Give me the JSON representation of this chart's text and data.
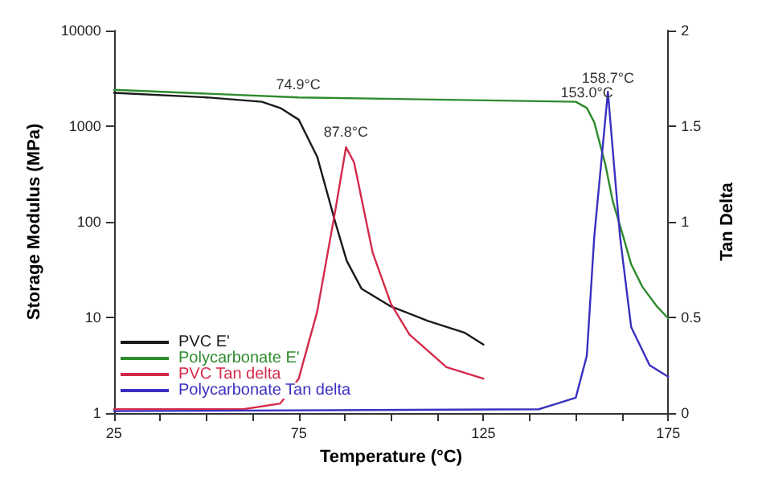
{
  "chart_data": {
    "type": "line",
    "xlabel": "Temperature (°C)",
    "ylabel": "Storage Modulus (MPa)",
    "y2label": "Tan Delta",
    "xlim": [
      25,
      175
    ],
    "xticks": [
      25,
      {
        "value": 37.5,
        "label": null
      },
      {
        "value": 50,
        "label": null
      },
      {
        "value": 62.5,
        "label": null
      },
      75,
      {
        "value": 87.5,
        "label": null
      },
      {
        "value": 100,
        "label": null
      },
      {
        "value": 112.5,
        "label": null
      },
      125,
      {
        "value": 137.5,
        "label": null
      },
      {
        "value": 150,
        "label": null
      },
      {
        "value": 162.5,
        "label": null
      },
      175
    ],
    "ylim": [
      1,
      10000
    ],
    "yticks": [
      1,
      10,
      100,
      1000,
      10000
    ],
    "log": "y",
    "y2lim": [
      0,
      2
    ],
    "y2ticks": [
      0.0,
      0.5,
      1.0,
      1.5,
      2.0
    ],
    "grid": false,
    "legend": "bottom left",
    "marker": "none",
    "line_style": "solid",
    "series": [
      {
        "name": "PVC E'",
        "color": "#1a1a1a",
        "x": [
          25,
          50,
          65,
          70,
          75,
          80,
          85,
          88,
          92,
          100,
          110,
          120,
          125
        ],
        "values": [
          2230,
          2000,
          1800,
          1550,
          1170,
          480,
          96,
          39,
          20,
          13,
          9.2,
          6.9,
          5.2
        ]
      },
      {
        "name": "Polycarbonate E'",
        "color": "#2e8b2e",
        "x": [
          25,
          75,
          150,
          153,
          155,
          158,
          160,
          163,
          165,
          168,
          172,
          175
        ],
        "values": [
          2400,
          2000,
          1800,
          1550,
          1100,
          400,
          165,
          67,
          36,
          21,
          13,
          9.8
        ]
      },
      {
        "name": "PVC Tan delta",
        "color": "#d42a4a",
        "axis": "y2",
        "x": [
          25,
          60,
          70,
          75,
          80,
          85,
          87.8,
          90,
          95,
          100,
          105,
          115,
          125
        ],
        "values": [
          0.02,
          0.02,
          0.05,
          0.18,
          0.53,
          1.07,
          1.39,
          1.31,
          0.84,
          0.57,
          0.41,
          0.24,
          0.18
        ]
      },
      {
        "name": "Polycarbonate Tan delta",
        "color": "#3a2fc0",
        "axis": "y2",
        "x": [
          25,
          140,
          145,
          150,
          153,
          155,
          158.7,
          162,
          165,
          170,
          175
        ],
        "values": [
          0.01,
          0.02,
          0.05,
          0.08,
          0.3,
          0.92,
          1.68,
          0.92,
          0.45,
          0.25,
          0.19
        ]
      }
    ],
    "annotations": [
      {
        "text": "74.9°C",
        "x": 74.9,
        "y": 1900
      },
      {
        "text": "87.8°C",
        "x": 87.8,
        "y": 600
      },
      {
        "text": "153.0°C",
        "x": 153.0,
        "y": 1550
      },
      {
        "text": "158.7°C",
        "x": 158.7,
        "y": 2230
      }
    ]
  }
}
